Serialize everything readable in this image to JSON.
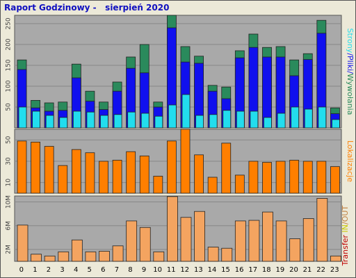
{
  "title": "Raport Godzinowy -   sierpień 2020",
  "colors": {
    "background": "#ece9d8",
    "panel": "#a9a9a9",
    "grid": "#888888",
    "title": "#1010c0",
    "visits": "#2a8a5c",
    "files": "#1010ee",
    "hits": "#22ddee",
    "sites": "#ff7f00",
    "transfer_in": "#f4a460",
    "transfer_label": "#c00000",
    "in_label": "#c8c800",
    "out_label": "#c08040"
  },
  "chart_data": [
    {
      "type": "bar",
      "panel": "requests",
      "categories": [
        "0",
        "1",
        "2",
        "3",
        "4",
        "5",
        "6",
        "7",
        "8",
        "9",
        "10",
        "11",
        "12",
        "13",
        "14",
        "15",
        "16",
        "17",
        "18",
        "19",
        "20",
        "21",
        "22",
        "23"
      ],
      "ylim": [
        0,
        270
      ],
      "yticks": [
        "50",
        "100",
        "150",
        "200",
        "250"
      ],
      "ytick_values": [
        50,
        100,
        150,
        200,
        250
      ],
      "label_parts": [
        "Strony",
        "/",
        "Pliki",
        "/",
        "Wywołania"
      ],
      "series": [
        {
          "name": "Wywołania",
          "values": [
            163,
            66,
            60,
            62,
            153,
            88,
            62,
            110,
            170,
            200,
            62,
            270,
            195,
            172,
            102,
            98,
            185,
            225,
            193,
            195,
            163,
            178,
            258,
            48
          ]
        },
        {
          "name": "Pliki",
          "values": [
            140,
            48,
            40,
            42,
            120,
            64,
            44,
            88,
            143,
            132,
            50,
            240,
            158,
            155,
            88,
            70,
            168,
            193,
            170,
            170,
            125,
            164,
            227,
            34
          ]
        },
        {
          "name": "Strony",
          "values": [
            50,
            40,
            30,
            25,
            40,
            38,
            30,
            32,
            38,
            35,
            28,
            55,
            80,
            30,
            32,
            42,
            40,
            40,
            25,
            35,
            50,
            45,
            50,
            20
          ]
        }
      ]
    },
    {
      "type": "bar",
      "panel": "sites",
      "categories": [
        "0",
        "1",
        "2",
        "3",
        "4",
        "5",
        "6",
        "7",
        "8",
        "9",
        "10",
        "11",
        "12",
        "13",
        "14",
        "15",
        "16",
        "17",
        "18",
        "19",
        "20",
        "21",
        "22",
        "23"
      ],
      "ylim": [
        0,
        60
      ],
      "yticks": [
        "10",
        "30",
        "50"
      ],
      "ytick_values": [
        10,
        30,
        50
      ],
      "label": "Lokalizacje",
      "series": [
        {
          "name": "Lokalizacje",
          "values": [
            49,
            48,
            44,
            26,
            41,
            38,
            30,
            31,
            39,
            35,
            16,
            49,
            60,
            36,
            15,
            47,
            17,
            30,
            29,
            30,
            31,
            30,
            30,
            25
          ]
        }
      ]
    },
    {
      "type": "bar",
      "panel": "transfer",
      "categories": [
        "0",
        "1",
        "2",
        "3",
        "4",
        "5",
        "6",
        "7",
        "8",
        "9",
        "10",
        "11",
        "12",
        "13",
        "14",
        "15",
        "16",
        "17",
        "18",
        "19",
        "20",
        "21",
        "22",
        "23"
      ],
      "ylim": [
        0,
        11
      ],
      "yticks": [
        "2M",
        "6M",
        "10M"
      ],
      "ytick_values": [
        2,
        6,
        10
      ],
      "label_parts": [
        "Transfer",
        "IN",
        "/",
        "OUT"
      ],
      "series": [
        {
          "name": "Transfer IN",
          "values": [
            6.1,
            1.2,
            0.9,
            1.6,
            3.6,
            1.6,
            1.7,
            2.6,
            6.8,
            5.7,
            1.6,
            10.9,
            7.4,
            8.4,
            2.4,
            2.2,
            6.8,
            6.9,
            8.3,
            6.8,
            3.8,
            7.2,
            10.6,
            0.9
          ]
        }
      ]
    }
  ]
}
